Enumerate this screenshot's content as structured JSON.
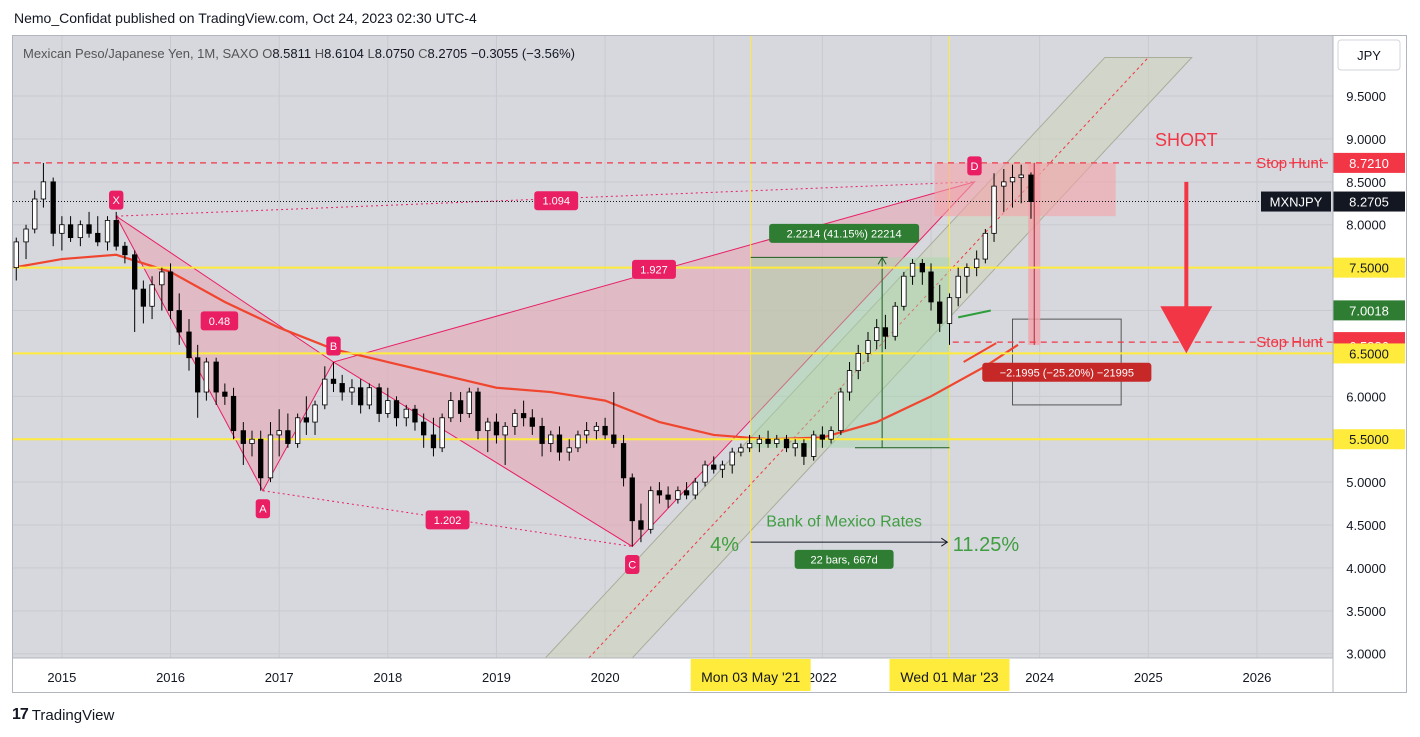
{
  "header": {
    "publish_line": "Nemo_Confidat published on TradingView.com, Oct 24, 2023 02:30 UTC-4"
  },
  "legend": {
    "symbol": "Mexican Peso/Japanese Yen, 1M, SAXO",
    "o_label": "O",
    "o": "8.5811",
    "h_label": "H",
    "h": "8.6104",
    "l_label": "L",
    "l": "8.0750",
    "c_label": "C",
    "c": "8.2705",
    "change": "−0.3055 (−3.56%)"
  },
  "currency_button": "JPY",
  "footer": {
    "brand": "TradingView",
    "logo_icon": "tradingview-logo-icon"
  },
  "colors": {
    "bg": "#d6d8de",
    "up": "#ffffff",
    "down": "#000000",
    "harmonic_fill": "#e6a9b4",
    "harmonic_line": "#e91e63",
    "yellow": "#ffeb3b",
    "red": "#f23645",
    "green": "#2e7d32",
    "ma": "#f0452e",
    "channel": "#cfd4b8"
  },
  "chart_data": {
    "type": "candlestick",
    "x_axis_ticks": [
      "2015",
      "2016",
      "2017",
      "2018",
      "2019",
      "2020",
      "2021",
      "2022",
      "2023",
      "2024",
      "2025",
      "2026"
    ],
    "y_axis_ticks": [
      "9.5000",
      "9.0000",
      "8.5000",
      "8.0000",
      "7.5000",
      "7.0000",
      "6.5000",
      "6.0000",
      "5.5000",
      "5.0000",
      "4.5000",
      "4.0000",
      "3.5000",
      "3.0000"
    ],
    "y_axis_tick_values": [
      9.5,
      9.0,
      8.5,
      8.0,
      7.5,
      7.0,
      6.5,
      6.0,
      5.5,
      5.0,
      4.5,
      4.0,
      3.5,
      3.0
    ],
    "ylim": [
      2.95,
      10.2
    ],
    "xlim": [
      2014.55,
      2026.7
    ],
    "price_labels": [
      {
        "text": "8.7210",
        "value": 8.721,
        "color": "#f23645",
        "text_color": "#ffffff"
      },
      {
        "text": "8.2705",
        "value": 8.2705,
        "color": "#131722",
        "text_color": "#ffffff",
        "symbol": "MXNJPY"
      },
      {
        "text": "7.5000",
        "value": 7.5,
        "color": "#ffeb3b",
        "text_color": "#131722"
      },
      {
        "text": "7.0018",
        "value": 7.0018,
        "color": "#2e7d32",
        "text_color": "#ffffff"
      },
      {
        "text": "6.6322",
        "value": 6.6322,
        "color": "#f23645",
        "text_color": "#ffffff"
      },
      {
        "text": "6.5886",
        "value": 6.5886,
        "color": "#f23645",
        "text_color": "#ffffff"
      },
      {
        "text": "6.5000",
        "value": 6.5,
        "color": "#ffeb3b",
        "text_color": "#131722"
      },
      {
        "text": "5.5000",
        "value": 5.5,
        "color": "#ffeb3b",
        "text_color": "#131722"
      }
    ],
    "date_labels": [
      {
        "text": "Mon 03 May '21",
        "t": 2021.34
      },
      {
        "text": "Wed 01 Mar '23",
        "t": 2023.17
      }
    ],
    "horizontal_levels": [
      {
        "value": 7.5,
        "color": "#ffeb3b",
        "style": "solid"
      },
      {
        "value": 6.5,
        "color": "#ffeb3b",
        "style": "solid"
      },
      {
        "value": 5.5,
        "color": "#ffeb3b",
        "style": "solid"
      },
      {
        "value": 8.721,
        "color": "#f23645",
        "style": "dashed"
      },
      {
        "value": 6.6322,
        "color": "#f23645",
        "style": "dashed",
        "from_t": 2023.2
      }
    ],
    "harmonic_points": [
      {
        "label": "X",
        "t": 2015.5,
        "v": 8.1
      },
      {
        "label": "A",
        "t": 2016.85,
        "v": 4.9
      },
      {
        "label": "B",
        "t": 2017.5,
        "v": 6.4
      },
      {
        "label": "C",
        "t": 2020.25,
        "v": 4.25
      },
      {
        "label": "D",
        "t": 2023.4,
        "v": 8.5
      }
    ],
    "harmonic_ratios": [
      {
        "text": "1.094",
        "t": 2019.55,
        "v": 8.28
      },
      {
        "text": "0.48",
        "t": 2016.45,
        "v": 6.88
      },
      {
        "text": "1.927",
        "t": 2020.45,
        "v": 7.48
      },
      {
        "text": "1.202",
        "t": 2018.55,
        "v": 4.56
      }
    ],
    "annotations": {
      "short": "SHORT",
      "stop_hunt_upper": "Stop Hunt",
      "stop_hunt_lower": "Stop Hunt",
      "boj_rates": "Bank of Mexico Rates",
      "rate_from": "4%",
      "rate_to": "11.25%",
      "range_up": "2.2214 (41.15%) 22214",
      "range_down": "−2.1995 (−25.20%) −21995",
      "bars": "22 bars, 667d"
    },
    "candles": [
      [
        2014.58,
        7.5,
        7.85,
        7.35,
        7.8
      ],
      [
        2014.67,
        7.8,
        8.0,
        7.6,
        7.95
      ],
      [
        2014.75,
        7.95,
        8.4,
        7.9,
        8.3
      ],
      [
        2014.83,
        8.3,
        8.72,
        8.2,
        8.5
      ],
      [
        2014.92,
        8.5,
        8.55,
        7.75,
        7.9
      ],
      [
        2015.0,
        7.9,
        8.1,
        7.7,
        8.0
      ],
      [
        2015.08,
        8.0,
        8.1,
        7.8,
        7.85
      ],
      [
        2015.17,
        7.85,
        8.05,
        7.75,
        8.0
      ],
      [
        2015.25,
        8.0,
        8.15,
        7.85,
        7.9
      ],
      [
        2015.33,
        7.9,
        8.1,
        7.75,
        7.8
      ],
      [
        2015.42,
        7.8,
        8.1,
        7.7,
        8.05
      ],
      [
        2015.5,
        8.05,
        8.15,
        7.7,
        7.75
      ],
      [
        2015.58,
        7.75,
        7.8,
        7.55,
        7.65
      ],
      [
        2015.67,
        7.65,
        7.7,
        6.75,
        7.25
      ],
      [
        2015.75,
        7.25,
        7.35,
        6.85,
        7.05
      ],
      [
        2015.83,
        7.05,
        7.4,
        6.9,
        7.3
      ],
      [
        2015.92,
        7.3,
        7.5,
        7.0,
        7.45
      ],
      [
        2016.0,
        7.45,
        7.55,
        6.9,
        7.0
      ],
      [
        2016.08,
        7.0,
        7.2,
        6.6,
        6.75
      ],
      [
        2016.17,
        6.75,
        6.9,
        6.3,
        6.45
      ],
      [
        2016.25,
        6.45,
        6.6,
        5.75,
        6.05
      ],
      [
        2016.33,
        6.05,
        6.45,
        5.95,
        6.4
      ],
      [
        2016.42,
        6.4,
        6.45,
        5.9,
        6.05
      ],
      [
        2016.5,
        6.05,
        6.15,
        5.9,
        6.0
      ],
      [
        2016.58,
        6.0,
        6.1,
        5.5,
        5.6
      ],
      [
        2016.67,
        5.6,
        5.7,
        5.2,
        5.45
      ],
      [
        2016.75,
        5.45,
        5.6,
        5.3,
        5.5
      ],
      [
        2016.83,
        5.5,
        5.6,
        4.9,
        5.05
      ],
      [
        2016.92,
        5.05,
        5.7,
        5.0,
        5.55
      ],
      [
        2017.0,
        5.55,
        5.85,
        5.3,
        5.6
      ],
      [
        2017.08,
        5.6,
        5.8,
        5.4,
        5.45
      ],
      [
        2017.17,
        5.45,
        5.8,
        5.4,
        5.75
      ],
      [
        2017.25,
        5.75,
        6.0,
        5.55,
        5.7
      ],
      [
        2017.33,
        5.7,
        5.95,
        5.55,
        5.9
      ],
      [
        2017.42,
        5.9,
        6.35,
        5.85,
        6.2
      ],
      [
        2017.5,
        6.2,
        6.4,
        6.05,
        6.15
      ],
      [
        2017.58,
        6.15,
        6.25,
        5.95,
        6.05
      ],
      [
        2017.67,
        6.05,
        6.2,
        5.9,
        6.1
      ],
      [
        2017.75,
        6.1,
        6.2,
        5.8,
        5.9
      ],
      [
        2017.83,
        5.9,
        6.15,
        5.85,
        6.1
      ],
      [
        2017.92,
        6.1,
        6.15,
        5.7,
        5.8
      ],
      [
        2018.0,
        5.8,
        6.1,
        5.75,
        5.95
      ],
      [
        2018.08,
        5.95,
        6.0,
        5.65,
        5.75
      ],
      [
        2018.17,
        5.75,
        5.9,
        5.65,
        5.85
      ],
      [
        2018.25,
        5.85,
        5.9,
        5.6,
        5.7
      ],
      [
        2018.33,
        5.7,
        5.8,
        5.4,
        5.55
      ],
      [
        2018.42,
        5.55,
        5.75,
        5.3,
        5.4
      ],
      [
        2018.5,
        5.4,
        5.8,
        5.35,
        5.75
      ],
      [
        2018.58,
        5.75,
        6.05,
        5.7,
        5.95
      ],
      [
        2018.67,
        5.95,
        6.05,
        5.7,
        5.8
      ],
      [
        2018.75,
        5.8,
        6.1,
        5.75,
        6.05
      ],
      [
        2018.83,
        6.05,
        6.1,
        5.5,
        5.6
      ],
      [
        2018.92,
        5.6,
        5.75,
        5.35,
        5.7
      ],
      [
        2019.0,
        5.7,
        5.8,
        5.45,
        5.55
      ],
      [
        2019.08,
        5.55,
        5.7,
        5.2,
        5.65
      ],
      [
        2019.17,
        5.65,
        5.85,
        5.55,
        5.8
      ],
      [
        2019.25,
        5.8,
        5.95,
        5.65,
        5.75
      ],
      [
        2019.33,
        5.75,
        5.85,
        5.55,
        5.65
      ],
      [
        2019.42,
        5.65,
        5.75,
        5.3,
        5.45
      ],
      [
        2019.5,
        5.45,
        5.6,
        5.35,
        5.55
      ],
      [
        2019.58,
        5.55,
        5.65,
        5.25,
        5.35
      ],
      [
        2019.67,
        5.35,
        5.5,
        5.25,
        5.4
      ],
      [
        2019.75,
        5.4,
        5.6,
        5.35,
        5.55
      ],
      [
        2019.83,
        5.55,
        5.7,
        5.45,
        5.6
      ],
      [
        2019.92,
        5.6,
        5.7,
        5.5,
        5.65
      ],
      [
        2020.0,
        5.65,
        5.75,
        5.5,
        5.55
      ],
      [
        2020.08,
        5.55,
        6.05,
        5.4,
        5.45
      ],
      [
        2020.17,
        5.45,
        5.55,
        4.95,
        5.05
      ],
      [
        2020.25,
        5.05,
        5.1,
        4.25,
        4.55
      ],
      [
        2020.33,
        4.55,
        4.75,
        4.3,
        4.45
      ],
      [
        2020.42,
        4.45,
        4.95,
        4.4,
        4.9
      ],
      [
        2020.5,
        4.9,
        5.0,
        4.75,
        4.85
      ],
      [
        2020.58,
        4.85,
        4.95,
        4.7,
        4.8
      ],
      [
        2020.67,
        4.8,
        4.95,
        4.75,
        4.9
      ],
      [
        2020.75,
        4.9,
        5.0,
        4.8,
        4.85
      ],
      [
        2020.83,
        4.85,
        5.05,
        4.8,
        5.0
      ],
      [
        2020.92,
        5.0,
        5.25,
        4.95,
        5.2
      ],
      [
        2021.0,
        5.2,
        5.3,
        5.1,
        5.15
      ],
      [
        2021.08,
        5.15,
        5.25,
        5.05,
        5.2
      ],
      [
        2021.17,
        5.2,
        5.4,
        5.1,
        5.35
      ],
      [
        2021.25,
        5.35,
        5.45,
        5.3,
        5.4
      ],
      [
        2021.33,
        5.4,
        5.55,
        5.35,
        5.45
      ],
      [
        2021.42,
        5.45,
        5.55,
        5.35,
        5.5
      ],
      [
        2021.5,
        5.5,
        5.6,
        5.4,
        5.45
      ],
      [
        2021.58,
        5.45,
        5.55,
        5.4,
        5.5
      ],
      [
        2021.67,
        5.5,
        5.55,
        5.35,
        5.4
      ],
      [
        2021.75,
        5.4,
        5.5,
        5.3,
        5.45
      ],
      [
        2021.83,
        5.45,
        5.5,
        5.2,
        5.3
      ],
      [
        2021.92,
        5.3,
        5.6,
        5.25,
        5.55
      ],
      [
        2022.0,
        5.55,
        5.65,
        5.4,
        5.5
      ],
      [
        2022.08,
        5.5,
        5.65,
        5.45,
        5.6
      ],
      [
        2022.17,
        5.6,
        6.1,
        5.55,
        6.05
      ],
      [
        2022.25,
        6.05,
        6.4,
        5.95,
        6.3
      ],
      [
        2022.33,
        6.3,
        6.6,
        6.2,
        6.5
      ],
      [
        2022.42,
        6.5,
        6.75,
        6.4,
        6.65
      ],
      [
        2022.5,
        6.65,
        6.9,
        6.55,
        6.8
      ],
      [
        2022.58,
        6.8,
        6.95,
        6.55,
        6.7
      ],
      [
        2022.67,
        6.7,
        7.1,
        6.65,
        7.05
      ],
      [
        2022.75,
        7.05,
        7.45,
        7.0,
        7.4
      ],
      [
        2022.83,
        7.4,
        7.6,
        7.3,
        7.55
      ],
      [
        2022.92,
        7.55,
        7.6,
        7.3,
        7.45
      ],
      [
        2023.0,
        7.45,
        7.55,
        7.0,
        7.1
      ],
      [
        2023.08,
        7.1,
        7.3,
        6.75,
        6.85
      ],
      [
        2023.17,
        6.85,
        7.2,
        6.6,
        7.15
      ],
      [
        2023.25,
        7.15,
        7.5,
        7.05,
        7.4
      ],
      [
        2023.33,
        7.4,
        7.55,
        7.2,
        7.5
      ],
      [
        2023.42,
        7.5,
        7.7,
        7.4,
        7.6
      ],
      [
        2023.5,
        7.6,
        7.95,
        7.55,
        7.9
      ],
      [
        2023.58,
        7.9,
        8.6,
        7.8,
        8.45
      ],
      [
        2023.67,
        8.45,
        8.65,
        8.15,
        8.5
      ],
      [
        2023.75,
        8.5,
        8.7,
        8.2,
        8.55
      ],
      [
        2023.83,
        8.55,
        8.7,
        8.25,
        8.58
      ],
      [
        2023.92,
        8.58,
        8.61,
        8.07,
        8.27
      ]
    ],
    "moving_average": [
      [
        2014.55,
        7.5
      ],
      [
        2015.0,
        7.6
      ],
      [
        2015.5,
        7.65
      ],
      [
        2016.0,
        7.45
      ],
      [
        2016.5,
        7.1
      ],
      [
        2017.0,
        6.8
      ],
      [
        2017.5,
        6.55
      ],
      [
        2018.0,
        6.4
      ],
      [
        2018.5,
        6.25
      ],
      [
        2019.0,
        6.1
      ],
      [
        2019.5,
        6.05
      ],
      [
        2020.0,
        5.95
      ],
      [
        2020.5,
        5.7
      ],
      [
        2021.0,
        5.55
      ],
      [
        2021.5,
        5.5
      ],
      [
        2022.0,
        5.52
      ],
      [
        2022.5,
        5.7
      ],
      [
        2023.0,
        6.0
      ],
      [
        2023.5,
        6.35
      ],
      [
        2023.8,
        6.6
      ]
    ]
  }
}
